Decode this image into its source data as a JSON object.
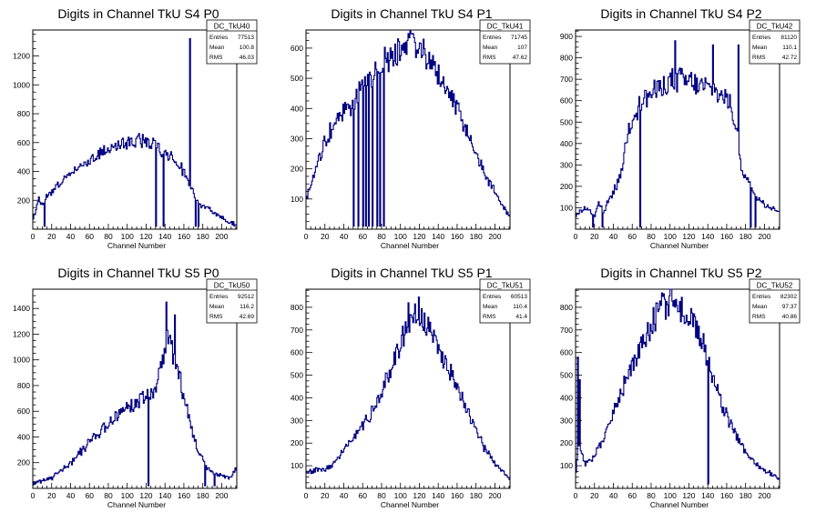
{
  "chart_data": [
    {
      "type": "histogram",
      "title": "Digits in Channel TkU S4 P0",
      "xlabel": "Channel Number",
      "xlim": [
        0,
        216
      ],
      "ylim": [
        0,
        1380
      ],
      "xticks": [
        0,
        20,
        40,
        60,
        80,
        100,
        120,
        140,
        160,
        180,
        200
      ],
      "yticks": [
        200,
        400,
        600,
        800,
        1000,
        1200
      ],
      "stats": {
        "name": "DC_TkU40",
        "rows": [
          [
            "Entries",
            "77513"
          ],
          [
            "Mean",
            "100.8"
          ],
          [
            "RMS",
            "46.03"
          ]
        ]
      },
      "profile": [
        [
          0,
          60
        ],
        [
          3,
          120
        ],
        [
          6,
          220
        ],
        [
          10,
          160
        ],
        [
          16,
          250
        ],
        [
          20,
          260
        ],
        [
          30,
          330
        ],
        [
          40,
          380
        ],
        [
          50,
          440
        ],
        [
          60,
          480
        ],
        [
          70,
          520
        ],
        [
          80,
          555
        ],
        [
          90,
          580
        ],
        [
          100,
          600
        ],
        [
          110,
          610
        ],
        [
          120,
          605
        ],
        [
          130,
          590
        ],
        [
          138,
          540
        ],
        [
          145,
          520
        ],
        [
          150,
          480
        ],
        [
          155,
          450
        ],
        [
          160,
          400
        ],
        [
          165,
          330
        ],
        [
          175,
          180
        ],
        [
          185,
          140
        ],
        [
          195,
          100
        ],
        [
          205,
          60
        ],
        [
          215,
          30
        ]
      ],
      "spikes": [
        [
          12,
          20
        ],
        [
          130,
          20
        ],
        [
          138,
          20
        ],
        [
          166,
          1320
        ],
        [
          172,
          20
        ],
        [
          175,
          20
        ]
      ]
    },
    {
      "type": "histogram",
      "title": "Digits in Channel TkU S4 P1",
      "xlabel": "Channel Number",
      "xlim": [
        0,
        216
      ],
      "ylim": [
        0,
        660
      ],
      "xticks": [
        0,
        20,
        40,
        60,
        80,
        100,
        120,
        140,
        160,
        180,
        200
      ],
      "yticks": [
        100,
        200,
        300,
        400,
        500,
        600
      ],
      "stats": {
        "name": "DC_TkU41",
        "rows": [
          [
            "Entries",
            "71745"
          ],
          [
            "Mean",
            "107"
          ],
          [
            "RMS",
            "47.62"
          ]
        ]
      },
      "profile": [
        [
          0,
          90
        ],
        [
          5,
          150
        ],
        [
          10,
          200
        ],
        [
          15,
          240
        ],
        [
          20,
          290
        ],
        [
          25,
          320
        ],
        [
          30,
          350
        ],
        [
          35,
          370
        ],
        [
          40,
          390
        ],
        [
          45,
          400
        ],
        [
          50,
          410
        ],
        [
          55,
          440
        ],
        [
          60,
          470
        ],
        [
          65,
          490
        ],
        [
          70,
          510
        ],
        [
          75,
          530
        ],
        [
          80,
          550
        ],
        [
          90,
          570
        ],
        [
          100,
          595
        ],
        [
          110,
          610
        ],
        [
          120,
          600
        ],
        [
          130,
          575
        ],
        [
          140,
          520
        ],
        [
          150,
          470
        ],
        [
          160,
          400
        ],
        [
          170,
          330
        ],
        [
          180,
          250
        ],
        [
          190,
          180
        ],
        [
          200,
          120
        ],
        [
          210,
          70
        ],
        [
          215,
          40
        ]
      ],
      "spikes": [
        [
          50,
          10
        ],
        [
          55,
          10
        ],
        [
          60,
          10
        ],
        [
          63,
          10
        ],
        [
          66,
          10
        ],
        [
          70,
          10
        ],
        [
          75,
          10
        ],
        [
          78,
          10
        ],
        [
          82,
          10
        ]
      ]
    },
    {
      "type": "histogram",
      "title": "Digits in Channel TkU S4 P2",
      "xlabel": "Channel Number",
      "xlim": [
        0,
        216
      ],
      "ylim": [
        0,
        930
      ],
      "xticks": [
        0,
        20,
        40,
        60,
        80,
        100,
        120,
        140,
        160,
        180,
        200
      ],
      "yticks": [
        100,
        200,
        300,
        400,
        500,
        600,
        700,
        800,
        900
      ],
      "stats": {
        "name": "DC_TkU42",
        "rows": [
          [
            "Entries",
            "81120"
          ],
          [
            "Mean",
            "110.1"
          ],
          [
            "RMS",
            "42.72"
          ]
        ]
      },
      "profile": [
        [
          0,
          60
        ],
        [
          10,
          100
        ],
        [
          20,
          60
        ],
        [
          25,
          120
        ],
        [
          30,
          80
        ],
        [
          35,
          140
        ],
        [
          40,
          170
        ],
        [
          45,
          220
        ],
        [
          50,
          300
        ],
        [
          55,
          450
        ],
        [
          60,
          520
        ],
        [
          65,
          560
        ],
        [
          70,
          600
        ],
        [
          80,
          630
        ],
        [
          90,
          660
        ],
        [
          100,
          690
        ],
        [
          110,
          700
        ],
        [
          120,
          690
        ],
        [
          130,
          670
        ],
        [
          140,
          660
        ],
        [
          150,
          640
        ],
        [
          160,
          610
        ],
        [
          165,
          560
        ],
        [
          170,
          480
        ],
        [
          175,
          300
        ],
        [
          180,
          250
        ],
        [
          185,
          200
        ],
        [
          190,
          160
        ],
        [
          200,
          120
        ],
        [
          210,
          100
        ],
        [
          215,
          80
        ]
      ],
      "spikes": [
        [
          18,
          10
        ],
        [
          28,
          10
        ],
        [
          68,
          10
        ],
        [
          105,
          880
        ],
        [
          145,
          860
        ],
        [
          172,
          860
        ],
        [
          185,
          10
        ],
        [
          190,
          10
        ]
      ]
    },
    {
      "type": "histogram",
      "title": "Digits in Channel TkU S5 P0",
      "xlabel": "Channel Number",
      "xlim": [
        0,
        216
      ],
      "ylim": [
        0,
        1550
      ],
      "xticks": [
        0,
        20,
        40,
        60,
        80,
        100,
        120,
        140,
        160,
        180,
        200
      ],
      "yticks": [
        200,
        400,
        600,
        800,
        1000,
        1200,
        1400
      ],
      "stats": {
        "name": "DC_TkU50",
        "rows": [
          [
            "Entries",
            "92512"
          ],
          [
            "Mean",
            "116.2"
          ],
          [
            "RMS",
            "42.69"
          ]
        ]
      },
      "profile": [
        [
          0,
          40
        ],
        [
          10,
          60
        ],
        [
          20,
          80
        ],
        [
          30,
          130
        ],
        [
          40,
          200
        ],
        [
          50,
          280
        ],
        [
          60,
          360
        ],
        [
          70,
          430
        ],
        [
          80,
          500
        ],
        [
          90,
          570
        ],
        [
          100,
          630
        ],
        [
          110,
          680
        ],
        [
          120,
          720
        ],
        [
          125,
          740
        ],
        [
          130,
          760
        ],
        [
          135,
          900
        ],
        [
          140,
          1100
        ],
        [
          145,
          1200
        ],
        [
          150,
          1000
        ],
        [
          155,
          900
        ],
        [
          160,
          700
        ],
        [
          165,
          550
        ],
        [
          170,
          400
        ],
        [
          175,
          300
        ],
        [
          180,
          220
        ],
        [
          185,
          150
        ],
        [
          190,
          120
        ],
        [
          200,
          100
        ],
        [
          210,
          80
        ],
        [
          215,
          150
        ]
      ],
      "spikes": [
        [
          122,
          20
        ],
        [
          141,
          1450
        ],
        [
          150,
          1350
        ],
        [
          182,
          20
        ],
        [
          192,
          20
        ]
      ]
    },
    {
      "type": "histogram",
      "title": "Digits in Channel TkU S5 P1",
      "xlabel": "Channel Number",
      "xlim": [
        0,
        216
      ],
      "ylim": [
        0,
        880
      ],
      "xticks": [
        0,
        20,
        40,
        60,
        80,
        100,
        120,
        140,
        160,
        180,
        200
      ],
      "yticks": [
        100,
        200,
        300,
        400,
        500,
        600,
        700,
        800
      ],
      "stats": {
        "name": "DC_TkU51",
        "rows": [
          [
            "Entries",
            "60513"
          ],
          [
            "Mean",
            "110.4"
          ],
          [
            "RMS",
            "41.4"
          ]
        ]
      },
      "profile": [
        [
          0,
          70
        ],
        [
          10,
          80
        ],
        [
          20,
          80
        ],
        [
          30,
          110
        ],
        [
          40,
          170
        ],
        [
          50,
          220
        ],
        [
          60,
          280
        ],
        [
          70,
          340
        ],
        [
          80,
          420
        ],
        [
          90,
          530
        ],
        [
          100,
          640
        ],
        [
          105,
          700
        ],
        [
          110,
          750
        ],
        [
          115,
          770
        ],
        [
          120,
          760
        ],
        [
          125,
          740
        ],
        [
          130,
          700
        ],
        [
          140,
          620
        ],
        [
          150,
          540
        ],
        [
          160,
          450
        ],
        [
          170,
          360
        ],
        [
          180,
          270
        ],
        [
          190,
          170
        ],
        [
          200,
          110
        ],
        [
          210,
          70
        ],
        [
          215,
          50
        ]
      ],
      "spikes": [
        [
          119,
          845
        ],
        [
          108,
          820
        ]
      ]
    },
    {
      "type": "histogram",
      "title": "Digits in Channel TkU S5 P2",
      "xlabel": "Channel Number",
      "xlim": [
        0,
        216
      ],
      "ylim": [
        0,
        880
      ],
      "xticks": [
        0,
        20,
        40,
        60,
        80,
        100,
        120,
        140,
        160,
        180,
        200
      ],
      "yticks": [
        100,
        200,
        300,
        400,
        500,
        600,
        700,
        800
      ],
      "stats": {
        "name": "DC_TkU52",
        "rows": [
          [
            "Entries",
            "82302"
          ],
          [
            "Mean",
            "97.37"
          ],
          [
            "RMS",
            "40.86"
          ]
        ]
      },
      "profile": [
        [
          0,
          60
        ],
        [
          3,
          200
        ],
        [
          6,
          150
        ],
        [
          10,
          110
        ],
        [
          20,
          140
        ],
        [
          30,
          220
        ],
        [
          40,
          340
        ],
        [
          50,
          440
        ],
        [
          60,
          540
        ],
        [
          70,
          630
        ],
        [
          80,
          720
        ],
        [
          90,
          790
        ],
        [
          100,
          820
        ],
        [
          110,
          800
        ],
        [
          120,
          760
        ],
        [
          130,
          700
        ],
        [
          135,
          640
        ],
        [
          140,
          560
        ],
        [
          150,
          430
        ],
        [
          160,
          320
        ],
        [
          170,
          230
        ],
        [
          180,
          160
        ],
        [
          190,
          110
        ],
        [
          200,
          80
        ],
        [
          210,
          60
        ],
        [
          215,
          40
        ]
      ],
      "spikes": [
        [
          2,
          580
        ],
        [
          4,
          480
        ],
        [
          140,
          20
        ]
      ]
    }
  ]
}
